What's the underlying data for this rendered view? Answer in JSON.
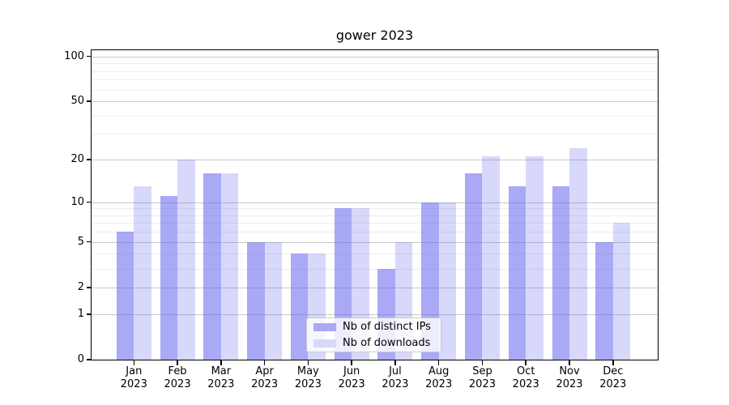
{
  "title": "gower 2023",
  "colors": {
    "bar_dark": "rgba(99,99,239,0.55)",
    "bar_light": "rgba(99,99,239,0.25)",
    "bar_dark_hex": "#a9a9f6",
    "bar_light_hex": "#d9d9f7",
    "grid_major": "#c9c9c9",
    "grid_minor": "#ededed",
    "axis": "#000000",
    "background": "#ffffff"
  },
  "legend": {
    "items": [
      {
        "label": "Nb of distinct IPs",
        "swatch": "dark"
      },
      {
        "label": "Nb of downloads",
        "swatch": "light"
      }
    ]
  },
  "y_axis": {
    "tick_labels": [
      "100",
      "50",
      "20",
      "10",
      "5",
      "2",
      "1",
      "0"
    ],
    "major_ticks": [
      0,
      1,
      2,
      5,
      10,
      20,
      50,
      100
    ],
    "minor_ticks": [
      3,
      4,
      6,
      7,
      8,
      9,
      30,
      40,
      60,
      70,
      80,
      90
    ],
    "scale": "log10(v+1)"
  },
  "x_axis": {
    "year_line": "2023"
  },
  "chart_data": {
    "type": "bar",
    "title": "gower 2023",
    "categories": [
      "Jan",
      "Feb",
      "Mar",
      "Apr",
      "May",
      "Jun",
      "Jul",
      "Aug",
      "Sep",
      "Oct",
      "Nov",
      "Dec"
    ],
    "x_tick_second_line": "2023",
    "series": [
      {
        "name": "Nb of distinct IPs",
        "values": [
          6,
          11,
          16,
          5,
          4,
          9,
          3,
          10,
          16,
          13,
          13,
          5
        ]
      },
      {
        "name": "Nb of downloads",
        "values": [
          13,
          20,
          16,
          5,
          4,
          9,
          5,
          10,
          21,
          21,
          24,
          7
        ]
      }
    ],
    "yscale": "log1p",
    "ylim": [
      0,
      110
    ],
    "y_major_ticks": [
      0,
      1,
      2,
      5,
      10,
      20,
      50,
      100
    ],
    "grid": true,
    "legend_position": "lower center"
  }
}
